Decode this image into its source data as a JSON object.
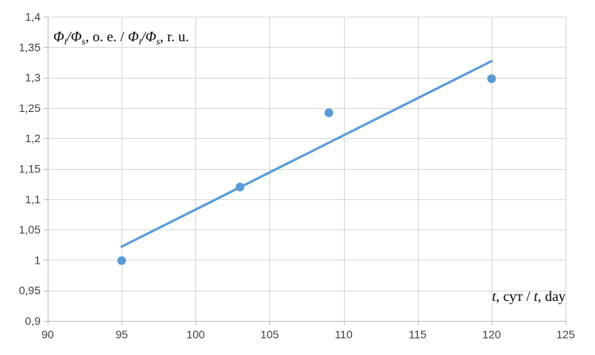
{
  "chart_data": {
    "type": "scatter",
    "x_label_parts": [
      "t",
      ", сут / ",
      "t",
      ", day"
    ],
    "y_label_parts": [
      "Φ",
      "i",
      "/",
      "Φ",
      "s",
      ", о. е. / ",
      "Φ",
      "i",
      "/",
      "Φ",
      "s",
      ", r. u."
    ],
    "xlim": [
      90,
      125
    ],
    "ylim": [
      0.9,
      1.4
    ],
    "x_ticks": [
      90,
      95,
      100,
      105,
      110,
      115,
      120,
      125
    ],
    "x_tick_labels": [
      "90",
      "95",
      "100",
      "105",
      "110",
      "115",
      "120",
      "125"
    ],
    "y_ticks": [
      0.9,
      0.95,
      1.0,
      1.05,
      1.1,
      1.15,
      1.2,
      1.25,
      1.3,
      1.35,
      1.4
    ],
    "y_tick_labels": [
      "0,9",
      "0,95",
      "1",
      "1,05",
      "1,1",
      "1,15",
      "1,2",
      "1,25",
      "1,3",
      "1,35",
      "1,4"
    ],
    "grid": true,
    "series": [
      {
        "points": [
          {
            "x": 95,
            "y": 0.999
          },
          {
            "x": 103,
            "y": 1.12
          },
          {
            "x": 109,
            "y": 1.242
          },
          {
            "x": 120,
            "y": 1.298
          }
        ],
        "color": "#5b9bd5"
      }
    ],
    "trendline": {
      "type": "linear",
      "from": {
        "x": 95,
        "y": 1.022
      },
      "to": {
        "x": 120,
        "y": 1.327
      },
      "color": "#5b9bd5"
    },
    "colors": {
      "grid": "#d9d9d9",
      "axis": "#bfbfbf",
      "tick_text": "#404040"
    }
  }
}
